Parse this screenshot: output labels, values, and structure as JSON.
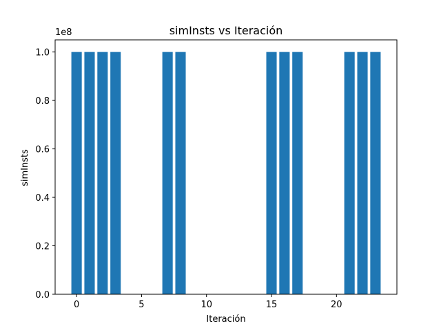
{
  "chart_data": {
    "type": "bar",
    "title": "simInsts vs Iteración",
    "xlabel": "Iteración",
    "ylabel": "simInsts",
    "y_offset_label": "1e8",
    "x": [
      0,
      1,
      2,
      3,
      4,
      5,
      6,
      7,
      8,
      9,
      10,
      11,
      12,
      13,
      14,
      15,
      16,
      17,
      18,
      19,
      20,
      21,
      22,
      23
    ],
    "values": [
      100000000,
      100000000,
      100000000,
      100000000,
      0,
      0,
      0,
      100000000,
      100000000,
      0,
      0,
      0,
      0,
      0,
      0,
      100000000,
      100000000,
      100000000,
      0,
      0,
      0,
      100000000,
      100000000,
      100000000
    ],
    "xlim": [
      -1.65,
      24.65
    ],
    "ylim": [
      0,
      105000000
    ],
    "x_ticks": [
      0,
      5,
      10,
      15,
      20
    ],
    "x_tick_labels": [
      "0",
      "5",
      "10",
      "15",
      "20"
    ],
    "y_ticks": [
      0,
      20000000,
      40000000,
      60000000,
      80000000,
      100000000
    ],
    "y_tick_labels": [
      "0.0",
      "0.2",
      "0.4",
      "0.6",
      "0.8",
      "1.0"
    ],
    "bar_color": "#1f77b4",
    "grid": false,
    "legend": "none"
  }
}
